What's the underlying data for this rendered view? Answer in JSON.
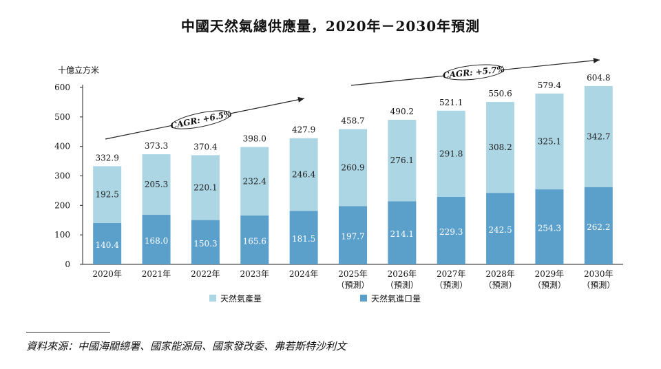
{
  "chart_data": {
    "type": "bar",
    "stacked": true,
    "title": "中國天然氣總供應量，2020年－2030年預測",
    "ylabel": "十億立方米",
    "ylim": [
      0,
      600
    ],
    "yticks": [
      0,
      100,
      200,
      300,
      400,
      500,
      600
    ],
    "grid": false,
    "legend_position": "bottom",
    "categories": [
      "2020年",
      "2021年",
      "2022年",
      "2023年",
      "2024年",
      "2025年",
      "2026年",
      "2027年",
      "2028年",
      "2029年",
      "2030年"
    ],
    "category_sublabels": [
      "",
      "",
      "",
      "",
      "",
      "（預測）",
      "（預測）",
      "（預測）",
      "（預測）",
      "（預測）",
      "（預測）"
    ],
    "series": [
      {
        "name": "天然氣進口量",
        "color": "#5b9fcb",
        "values": [
          140.4,
          168.0,
          150.3,
          165.6,
          181.5,
          197.7,
          214.1,
          229.3,
          242.5,
          254.3,
          262.2
        ]
      },
      {
        "name": "天然氣產量",
        "color": "#acd6e4",
        "values": [
          192.5,
          205.3,
          220.1,
          232.4,
          246.4,
          260.9,
          276.1,
          291.8,
          308.2,
          325.1,
          342.7
        ]
      }
    ],
    "totals": [
      332.9,
      373.3,
      370.4,
      398.0,
      427.9,
      458.7,
      490.2,
      521.1,
      550.6,
      579.4,
      604.8
    ],
    "annotations": [
      "CAGR: +6.5%",
      "CAGR: +5.7%"
    ]
  },
  "source": "資料來源：中國海關總署、國家能源局、國家發改委、弗若斯特沙利文"
}
